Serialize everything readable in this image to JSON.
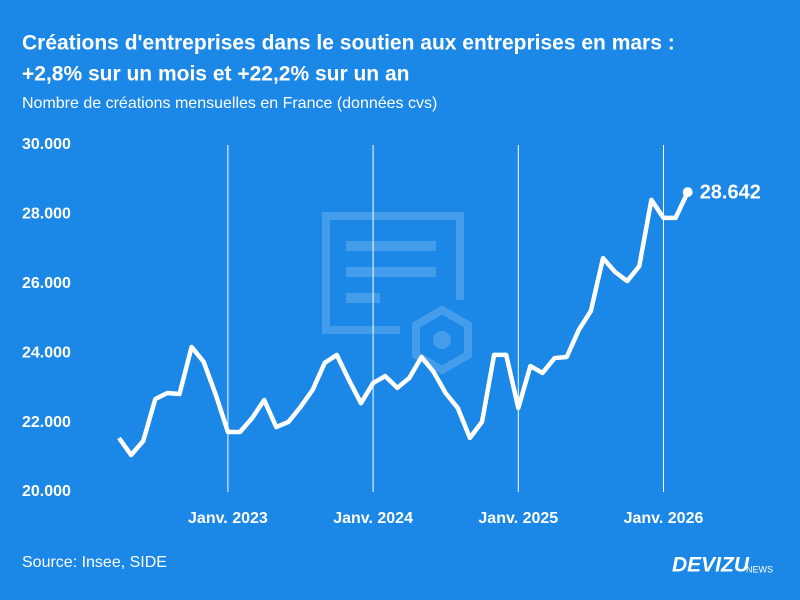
{
  "chart_data": {
    "type": "line",
    "title": [
      "Créations d'entreprises dans le soutien aux entreprises en mars :",
      "+2,8% sur un mois et +22,2% sur un an"
    ],
    "subtitle": "Nombre de créations mensuelles en France (données cvs)",
    "categories": [
      null,
      null,
      null,
      null,
      null,
      null,
      null,
      null,
      null,
      "Janv. 2023",
      null,
      null,
      null,
      null,
      null,
      null,
      null,
      null,
      null,
      null,
      null,
      "Janv. 2024",
      null,
      null,
      null,
      null,
      null,
      null,
      null,
      null,
      null,
      null,
      null,
      "Janv. 2025",
      null,
      null,
      null,
      null,
      null,
      null,
      null,
      null,
      null,
      null,
      null,
      "Janv. 2026",
      null,
      null
    ],
    "series": [
      {
        "color": "#ffffff",
        "values": [
          21556,
          21066,
          21470,
          22680,
          22853,
          22824,
          24180,
          23750,
          22800,
          21730,
          21730,
          22130,
          22650,
          21870,
          22020,
          22450,
          22940,
          23720,
          23950,
          23230,
          22560,
          23140,
          23340,
          23000,
          23290,
          23890,
          23460,
          22850,
          22420,
          21560,
          22020,
          23950,
          23950,
          22420,
          23630,
          23430,
          23860,
          23890,
          24670,
          25220,
          26740,
          26340,
          26080,
          26510,
          28420,
          27900,
          27900,
          28642
        ],
        "value_labels": [
          null,
          null,
          null,
          null,
          null,
          null,
          null,
          null,
          null,
          null,
          null,
          null,
          null,
          null,
          null,
          null,
          null,
          null,
          null,
          null,
          null,
          null,
          null,
          null,
          null,
          null,
          null,
          null,
          null,
          null,
          null,
          null,
          null,
          null,
          null,
          null,
          null,
          null,
          null,
          null,
          null,
          null,
          null,
          null,
          null,
          null,
          null,
          "28.642"
        ]
      }
    ],
    "ylim": [
      20000,
      30000
    ],
    "yticks": [
      {
        "value": 20000,
        "label": "20.000"
      },
      {
        "value": 22000,
        "label": "22.000"
      },
      {
        "value": 24000,
        "label": "24.000"
      },
      {
        "value": 26000,
        "label": "26.000"
      },
      {
        "value": 28000,
        "label": "28.000"
      },
      {
        "value": 30000,
        "label": "30.000"
      }
    ],
    "grid": true,
    "background": "#1b87e6"
  },
  "footer": {
    "source": "Source: Insee, SIDE",
    "brand": "DEVIZU",
    "brand_suffix": "NEWS"
  }
}
